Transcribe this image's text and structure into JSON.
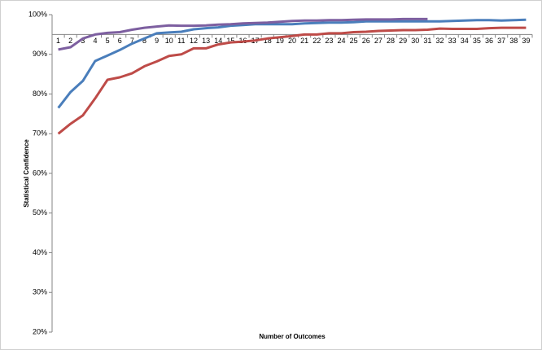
{
  "chart_data": {
    "type": "line",
    "y_label": "Statistical Confidence",
    "x_label": "Number of Outcomes",
    "categories": [
      "1",
      "2",
      "3",
      "4",
      "5",
      "6",
      "7",
      "8",
      "9",
      "10",
      "11",
      "12",
      "13",
      "14",
      "15",
      "16",
      "17",
      "18",
      "19",
      "20",
      "21",
      "22",
      "23",
      "24",
      "25",
      "26",
      "27",
      "28",
      "29",
      "30",
      "31",
      "32",
      "33",
      "34",
      "35",
      "36",
      "37",
      "38",
      "39"
    ],
    "series": [
      {
        "color": "#4a7ebb",
        "values": [
          76.5,
          80.5,
          83.3,
          88.3,
          89.7,
          91.1,
          92.7,
          94,
          95.3,
          95.5,
          95.7,
          96.3,
          96.6,
          96.8,
          97.2,
          97.4,
          97.6,
          97.6,
          97.6,
          97.6,
          97.8,
          97.9,
          98,
          98,
          98.1,
          98.3,
          98.3,
          98.3,
          98.3,
          98.3,
          98.3,
          98.3,
          98.4,
          98.5,
          98.6,
          98.6,
          98.5,
          98.6,
          98.7
        ]
      },
      {
        "color": "#be4b48",
        "values": [
          70,
          72.5,
          74.6,
          78.9,
          83.6,
          84.2,
          85.2,
          87,
          88.2,
          89.6,
          90,
          91.5,
          91.5,
          92.5,
          93,
          93.2,
          93.5,
          94,
          94.3,
          94.6,
          95,
          95,
          95.3,
          95.3,
          95.6,
          95.7,
          95.9,
          96,
          96.1,
          96.1,
          96.2,
          96.5,
          96.4,
          96.4,
          96.4,
          96.6,
          96.7,
          96.7,
          96.7
        ]
      },
      {
        "color": "#7d5fa0",
        "values": [
          91.2,
          91.8,
          94,
          95,
          95.4,
          95.6,
          96.2,
          96.7,
          97,
          97.3,
          97.2,
          97.2,
          97.3,
          97.5,
          97.6,
          97.8,
          97.9,
          98,
          98.2,
          98.4,
          98.5,
          98.5,
          98.6,
          98.6,
          98.7,
          98.8,
          98.8,
          98.8,
          98.9,
          98.9,
          98.9,
          null,
          null,
          null,
          null,
          null,
          null,
          null,
          null
        ]
      }
    ],
    "ylim": [
      20,
      100
    ],
    "yticks": [
      {
        "value": 20,
        "label": "20%"
      },
      {
        "value": 30,
        "label": "30%"
      },
      {
        "value": 40,
        "label": "40%"
      },
      {
        "value": 50,
        "label": "50%"
      },
      {
        "value": 60,
        "label": "60%"
      },
      {
        "value": 70,
        "label": "70%"
      },
      {
        "value": 80,
        "label": "80%"
      },
      {
        "value": 90,
        "label": "90%"
      },
      {
        "value": 100,
        "label": "100%"
      }
    ],
    "x_axis_crossing": 95,
    "grid": false
  }
}
